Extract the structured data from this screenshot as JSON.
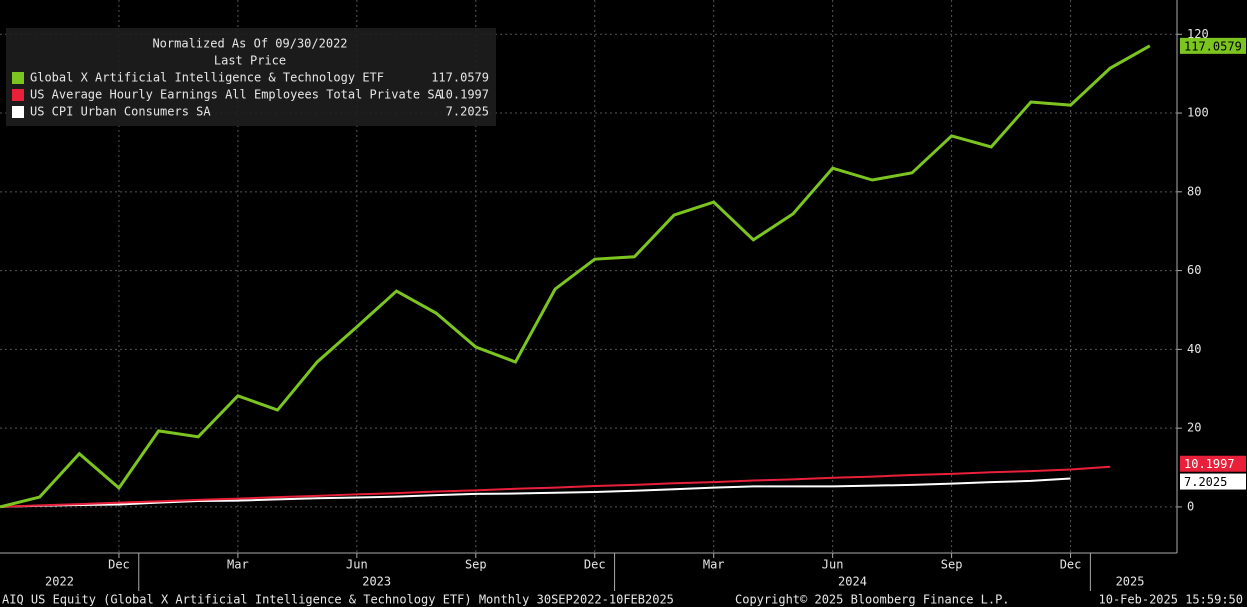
{
  "chart_data": {
    "type": "line",
    "legend_title": "Normalized As Of 09/30/2022",
    "legend_subtitle": "Last Price",
    "categories": [
      null,
      null,
      null,
      "Dec",
      null,
      null,
      "Mar",
      null,
      null,
      "Jun",
      null,
      null,
      "Sep",
      null,
      null,
      "Dec",
      null,
      null,
      "Mar",
      null,
      null,
      "Jun",
      null,
      null,
      "Sep",
      null,
      null,
      "Dec",
      null,
      null
    ],
    "year_labels": [
      "2022",
      "2023",
      "2024",
      "2025"
    ],
    "series": [
      {
        "name": "Global X Artificial Intelligence & Technology ETF",
        "color": "#7cc520",
        "values": [
          0,
          2.5,
          13.5,
          4.8,
          19.3,
          17.8,
          28.2,
          24.6,
          36.8,
          45.7,
          54.8,
          49.2,
          40.6,
          36.8,
          55.3,
          62.9,
          63.5,
          74.1,
          77.4,
          67.8,
          74.4,
          86.0,
          83.0,
          84.8,
          94.2,
          91.4,
          102.8,
          102.0,
          111.4,
          117.0579
        ]
      },
      {
        "name": "US Average Hourly Earnings All Employees Total Private SA",
        "color": "#e8203a",
        "values": [
          0,
          0.4,
          0.7,
          1.1,
          1.4,
          1.8,
          2.1,
          2.5,
          2.8,
          3.2,
          3.5,
          3.9,
          4.2,
          4.6,
          4.9,
          5.3,
          5.6,
          6.0,
          6.3,
          6.7,
          7.0,
          7.4,
          7.7,
          8.1,
          8.4,
          8.8,
          9.1,
          9.5,
          10.1997,
          null
        ]
      },
      {
        "name": "US CPI Urban Consumers SA",
        "color": "#ffffff",
        "values": [
          0,
          0.3,
          0.5,
          0.6,
          1.1,
          1.5,
          1.6,
          1.9,
          2.2,
          2.4,
          2.6,
          3.0,
          3.3,
          3.4,
          3.6,
          3.8,
          4.1,
          4.5,
          4.9,
          5.2,
          5.2,
          5.2,
          5.4,
          5.6,
          5.9,
          6.3,
          6.6,
          7.2025,
          null,
          null
        ]
      }
    ],
    "ylim": [
      -11.7,
      128.7
    ],
    "yticks": [
      0,
      20,
      40,
      60,
      80,
      100,
      120
    ],
    "grid": true
  },
  "footer": {
    "description": "AIQ US Equity (Global X Artificial Intelligence & Technology ETF)  Monthly 30SEP2022-10FEB2025",
    "copyright": "Copyright© 2025 Bloomberg Finance L.P.",
    "timestamp": "10-Feb-2025 15:59:50"
  }
}
